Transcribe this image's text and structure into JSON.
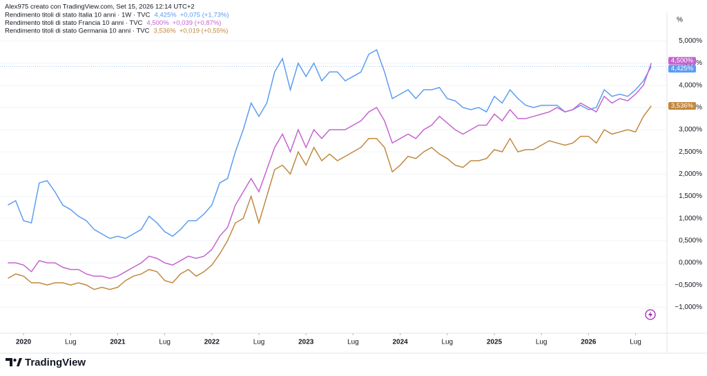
{
  "header": "Alex975 creato con TradingView.com, Set 15, 2026 12:14 UTC+2",
  "brand": "TradingView",
  "chart_data": {
    "type": "line",
    "y_unit": "%",
    "x": [
      "2019-11",
      "2019-12",
      "2020-01",
      "2020-02",
      "2020-03",
      "2020-04",
      "2020-05",
      "2020-06",
      "2020-07",
      "2020-08",
      "2020-09",
      "2020-10",
      "2020-11",
      "2020-12",
      "2021-01",
      "2021-02",
      "2021-03",
      "2021-04",
      "2021-05",
      "2021-06",
      "2021-07",
      "2021-08",
      "2021-09",
      "2021-10",
      "2021-11",
      "2021-12",
      "2022-01",
      "2022-02",
      "2022-03",
      "2022-04",
      "2022-05",
      "2022-06",
      "2022-07",
      "2022-08",
      "2022-09",
      "2022-10",
      "2022-11",
      "2022-12",
      "2023-01",
      "2023-02",
      "2023-03",
      "2023-04",
      "2023-05",
      "2023-06",
      "2023-07",
      "2023-08",
      "2023-09",
      "2023-10",
      "2023-11",
      "2023-12",
      "2024-01",
      "2024-02",
      "2024-03",
      "2024-04",
      "2024-05",
      "2024-06",
      "2024-07",
      "2024-08",
      "2024-09",
      "2024-10",
      "2024-11",
      "2024-12",
      "2025-01",
      "2025-02",
      "2025-03",
      "2025-04",
      "2025-05",
      "2025-06",
      "2025-07",
      "2025-08",
      "2025-09",
      "2025-10",
      "2025-11",
      "2025-12",
      "2026-01",
      "2026-02",
      "2026-03",
      "2026-04",
      "2026-05",
      "2026-06",
      "2026-07",
      "2026-08",
      "2026-09"
    ],
    "xlim": [
      "2019-10",
      "2026-11"
    ],
    "xticks": [
      {
        "value": "2020-01",
        "label": "2020"
      },
      {
        "value": "2020-07",
        "label": "Lug"
      },
      {
        "value": "2021-01",
        "label": "2021"
      },
      {
        "value": "2021-07",
        "label": "Lug"
      },
      {
        "value": "2022-01",
        "label": "2022"
      },
      {
        "value": "2022-07",
        "label": "Lug"
      },
      {
        "value": "2023-01",
        "label": "2023"
      },
      {
        "value": "2023-07",
        "label": "Lug"
      },
      {
        "value": "2024-01",
        "label": "2024"
      },
      {
        "value": "2024-07",
        "label": "Lug"
      },
      {
        "value": "2025-01",
        "label": "2025"
      },
      {
        "value": "2025-07",
        "label": "Lug"
      },
      {
        "value": "2026-01",
        "label": "2026"
      },
      {
        "value": "2026-07",
        "label": "Lug"
      }
    ],
    "ylim": [
      -1.3,
      5.6
    ],
    "yticks": [
      {
        "value": -1,
        "label": "−1,000%"
      },
      {
        "value": -0.5,
        "label": "−0,500%"
      },
      {
        "value": 0,
        "label": "0,000%"
      },
      {
        "value": 0.5,
        "label": "0,500%"
      },
      {
        "value": 1,
        "label": "1,000%"
      },
      {
        "value": 1.5,
        "label": "1,500%"
      },
      {
        "value": 2,
        "label": "2,000%"
      },
      {
        "value": 2.5,
        "label": "2,500%"
      },
      {
        "value": 3,
        "label": "3,000%"
      },
      {
        "value": 3.5,
        "label": "3,500%"
      },
      {
        "value": 4,
        "label": "4,000%"
      },
      {
        "value": 4.5,
        "label": "4,500%"
      },
      {
        "value": 5,
        "label": "5,000%"
      }
    ],
    "grid": true,
    "series": [
      {
        "name": "Rendimento titoli di stato Italia 10 anni · 1W · TVC",
        "color": "#5b9cf2",
        "change": "+0,075 (+1,73%)",
        "values": [
          1.3,
          1.4,
          0.95,
          0.9,
          1.8,
          1.85,
          1.6,
          1.3,
          1.2,
          1.05,
          0.95,
          0.75,
          0.65,
          0.55,
          0.6,
          0.55,
          0.65,
          0.75,
          1.05,
          0.9,
          0.7,
          0.6,
          0.75,
          0.95,
          0.95,
          1.1,
          1.3,
          1.8,
          1.9,
          2.5,
          3.0,
          3.6,
          3.3,
          3.6,
          4.3,
          4.6,
          3.9,
          4.5,
          4.2,
          4.5,
          4.1,
          4.3,
          4.3,
          4.1,
          4.2,
          4.3,
          4.7,
          4.8,
          4.3,
          3.7,
          3.8,
          3.9,
          3.7,
          3.9,
          3.9,
          3.95,
          3.7,
          3.65,
          3.5,
          3.45,
          3.5,
          3.4,
          3.75,
          3.6,
          3.9,
          3.7,
          3.55,
          3.5,
          3.55,
          3.55,
          3.55,
          3.4,
          3.45,
          3.55,
          3.45,
          3.5,
          3.9,
          3.75,
          3.8,
          3.75,
          3.9,
          4.1,
          4.425
        ],
        "value_labels": [
          null,
          null,
          null,
          null,
          null,
          null,
          null,
          null,
          null,
          null,
          null,
          null,
          null,
          null,
          null,
          null,
          null,
          null,
          null,
          null,
          null,
          null,
          null,
          null,
          null,
          null,
          null,
          null,
          null,
          null,
          null,
          null,
          null,
          null,
          null,
          null,
          null,
          null,
          null,
          null,
          null,
          null,
          null,
          null,
          null,
          null,
          null,
          null,
          null,
          null,
          null,
          null,
          null,
          null,
          null,
          null,
          null,
          null,
          null,
          null,
          null,
          null,
          null,
          null,
          null,
          null,
          null,
          null,
          null,
          null,
          null,
          null,
          null,
          null,
          null,
          null,
          null,
          null,
          null,
          null,
          null,
          null,
          "4,425%"
        ]
      },
      {
        "name": "Rendimento titoli di stato Francia 10 anni · TVC",
        "color": "#c463d0",
        "change": "+0,039 (+0,87%)",
        "values": [
          0.0,
          0.0,
          -0.05,
          -0.2,
          0.05,
          0.0,
          0.0,
          -0.1,
          -0.15,
          -0.15,
          -0.25,
          -0.3,
          -0.3,
          -0.35,
          -0.3,
          -0.2,
          -0.1,
          0.0,
          0.15,
          0.1,
          0.0,
          -0.05,
          0.05,
          0.15,
          0.1,
          0.15,
          0.3,
          0.6,
          0.8,
          1.3,
          1.6,
          1.9,
          1.6,
          2.1,
          2.6,
          2.9,
          2.5,
          3.0,
          2.6,
          3.0,
          2.8,
          3.0,
          3.0,
          3.0,
          3.1,
          3.2,
          3.4,
          3.5,
          3.2,
          2.7,
          2.8,
          2.9,
          2.8,
          3.0,
          3.1,
          3.3,
          3.15,
          3.0,
          2.9,
          3.0,
          3.1,
          3.1,
          3.35,
          3.2,
          3.45,
          3.25,
          3.25,
          3.3,
          3.35,
          3.4,
          3.5,
          3.4,
          3.45,
          3.6,
          3.5,
          3.4,
          3.75,
          3.6,
          3.7,
          3.65,
          3.8,
          4.0,
          4.5
        ],
        "value_labels": [
          null,
          null,
          null,
          null,
          null,
          null,
          null,
          null,
          null,
          null,
          null,
          null,
          null,
          null,
          null,
          null,
          null,
          null,
          null,
          null,
          null,
          null,
          null,
          null,
          null,
          null,
          null,
          null,
          null,
          null,
          null,
          null,
          null,
          null,
          null,
          null,
          null,
          null,
          null,
          null,
          null,
          null,
          null,
          null,
          null,
          null,
          null,
          null,
          null,
          null,
          null,
          null,
          null,
          null,
          null,
          null,
          null,
          null,
          null,
          null,
          null,
          null,
          null,
          null,
          null,
          null,
          null,
          null,
          null,
          null,
          null,
          null,
          null,
          null,
          null,
          null,
          null,
          null,
          null,
          null,
          null,
          null,
          "4,500%"
        ]
      },
      {
        "name": "Rendimento titoli di stato Germania 10 anni · TVC",
        "color": "#c1873d",
        "change": "+0,019 (+0,55%)",
        "values": [
          -0.35,
          -0.25,
          -0.3,
          -0.45,
          -0.45,
          -0.5,
          -0.45,
          -0.45,
          -0.5,
          -0.45,
          -0.5,
          -0.6,
          -0.55,
          -0.6,
          -0.55,
          -0.4,
          -0.3,
          -0.25,
          -0.15,
          -0.2,
          -0.4,
          -0.45,
          -0.25,
          -0.15,
          -0.3,
          -0.2,
          -0.05,
          0.2,
          0.5,
          0.9,
          1.0,
          1.5,
          0.9,
          1.5,
          2.1,
          2.2,
          2.0,
          2.5,
          2.2,
          2.6,
          2.3,
          2.45,
          2.3,
          2.4,
          2.5,
          2.6,
          2.8,
          2.8,
          2.6,
          2.05,
          2.2,
          2.4,
          2.35,
          2.5,
          2.6,
          2.45,
          2.35,
          2.2,
          2.15,
          2.3,
          2.3,
          2.35,
          2.55,
          2.5,
          2.8,
          2.5,
          2.55,
          2.55,
          2.65,
          2.75,
          2.7,
          2.65,
          2.7,
          2.85,
          2.85,
          2.7,
          3.0,
          2.9,
          2.95,
          3.0,
          2.95,
          3.3,
          3.536
        ],
        "value_labels": [
          null,
          null,
          null,
          null,
          null,
          null,
          null,
          null,
          null,
          null,
          null,
          null,
          null,
          null,
          null,
          null,
          null,
          null,
          null,
          null,
          null,
          null,
          null,
          null,
          null,
          null,
          null,
          null,
          null,
          null,
          null,
          null,
          null,
          null,
          null,
          null,
          null,
          null,
          null,
          null,
          null,
          null,
          null,
          null,
          null,
          null,
          null,
          null,
          null,
          null,
          null,
          null,
          null,
          null,
          null,
          null,
          null,
          null,
          null,
          null,
          null,
          null,
          null,
          null,
          null,
          null,
          null,
          null,
          null,
          null,
          null,
          null,
          null,
          null,
          null,
          null,
          null,
          null,
          null,
          null,
          null,
          null,
          "3,536%"
        ]
      }
    ]
  }
}
